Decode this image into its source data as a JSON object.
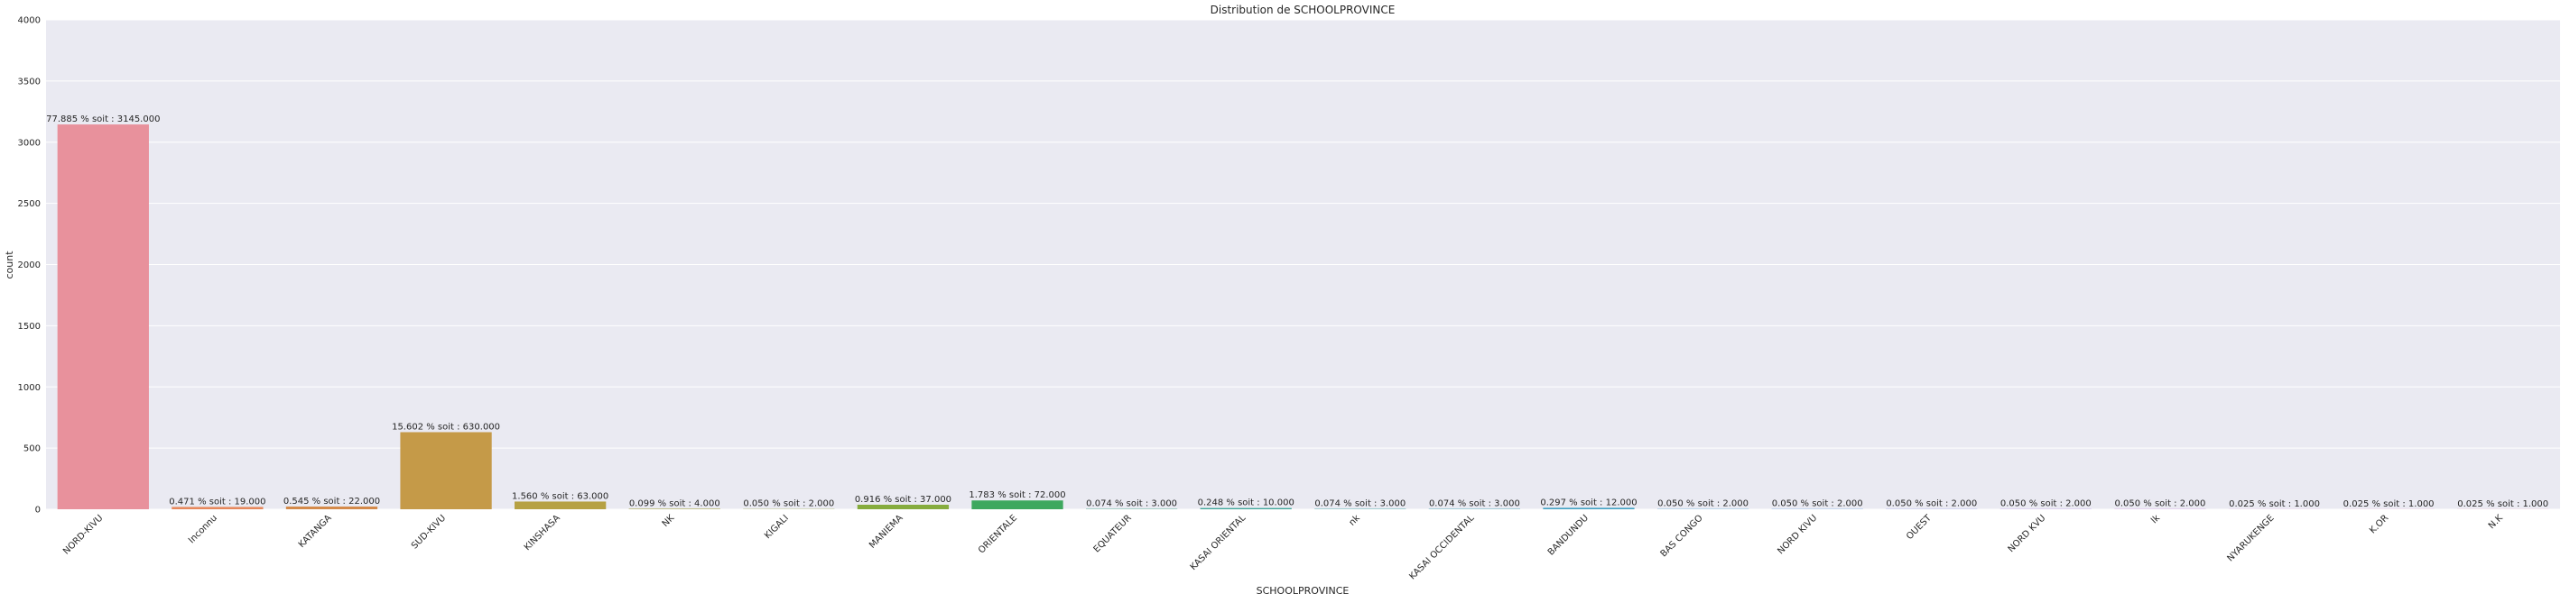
{
  "chart_data": {
    "type": "bar",
    "title": "Distribution de SCHOOLPROVINCE",
    "xlabel": "SCHOOLPROVINCE",
    "ylabel": "count",
    "ylim": [
      0,
      4000
    ],
    "yticks": [
      0,
      500,
      1000,
      1500,
      2000,
      2500,
      3000,
      3500,
      4000
    ],
    "grid": true,
    "categories": [
      "NORD-KIVU",
      "Inconnu",
      "KATANGA",
      "SUD-KIVU",
      "KINSHASA",
      "NK",
      "KIGALI",
      "MANIEMA",
      "ORIENTALE",
      "EQUATEUR",
      "KASAI ORIENTAL",
      "nk",
      "KASAI OCCIDENTAL",
      "BANDUNDU",
      "BAS CONGO",
      "NORD KIVU",
      "OUEST",
      "NORD KVU",
      "lk",
      "NYARUKENGE",
      "K.OR",
      "N.K"
    ],
    "values": [
      3145,
      19,
      22,
      630,
      63,
      4,
      2,
      37,
      72,
      3,
      10,
      3,
      3,
      12,
      2,
      2,
      2,
      2,
      2,
      1,
      1,
      1
    ],
    "data_labels": [
      "77.885 % soit : 3145.000",
      "0.471 % soit : 19.000",
      "0.545 % soit : 22.000",
      "15.602 % soit : 630.000",
      "1.560 % soit : 63.000",
      "0.099 % soit : 4.000",
      "0.050 % soit : 2.000",
      "0.916 % soit : 37.000",
      "1.783 % soit : 72.000",
      "0.074 % soit : 3.000",
      "0.248 % soit : 10.000",
      "0.074 % soit : 3.000",
      "0.074 % soit : 3.000",
      "0.297 % soit : 12.000",
      "0.050 % soit : 2.000",
      "0.050 % soit : 2.000",
      "0.050 % soit : 2.000",
      "0.050 % soit : 2.000",
      "0.050 % soit : 2.000",
      "0.025 % soit : 1.000",
      "0.025 % soit : 1.000",
      "0.025 % soit : 1.000"
    ],
    "colors": [
      "#e8919c",
      "#e6885c",
      "#d48a4a",
      "#c59a48",
      "#b6a143",
      "#a6a53f",
      "#98a83d",
      "#86ac3e",
      "#3ea85e",
      "#42a98b",
      "#3fa69a",
      "#3ea4a6",
      "#40a2b3",
      "#44a3c4",
      "#3e9fd0",
      "#5f9ae4",
      "#8e96e8",
      "#b08be8",
      "#ce85e4",
      "#e27fd8",
      "#e683c3",
      "#e98aad"
    ]
  }
}
